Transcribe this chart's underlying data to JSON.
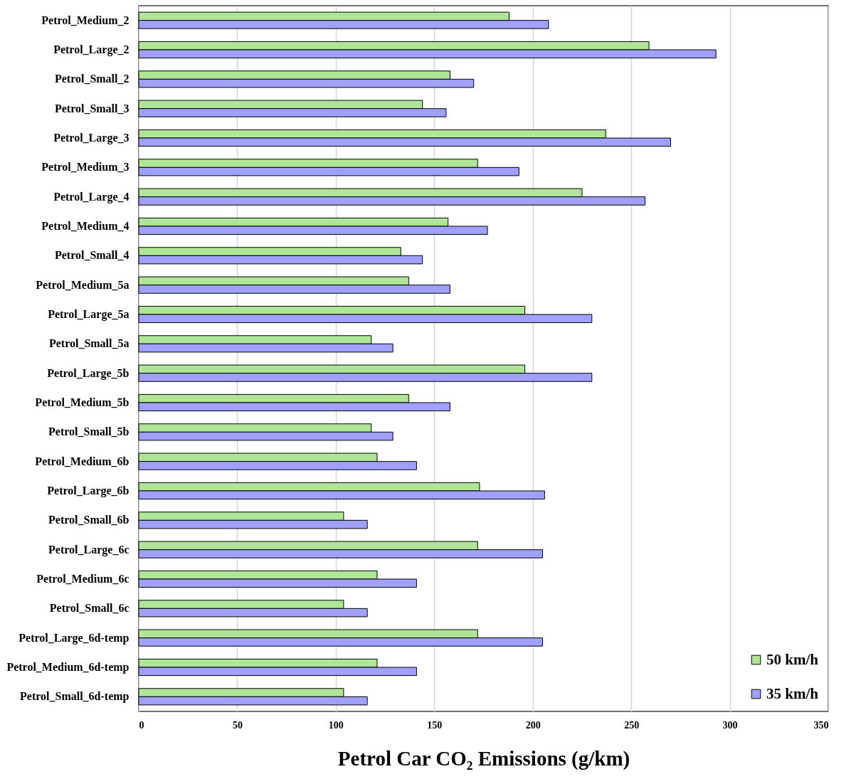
{
  "chart_data": {
    "type": "bar",
    "orientation": "horizontal",
    "xlabel": "Petrol Car CO₂ Emissions (g/km)",
    "categories": [
      "Petrol_Medium_2",
      "Petrol_Large_2",
      "Petrol_Small_2",
      "Petrol_Small_3",
      "Petrol_Large_3",
      "Petrol_Medium_3",
      "Petrol_Large_4",
      "Petrol_Medium_4",
      "Petrol_Small_4",
      "Petrol_Medium_5a",
      "Petrol_Large_5a",
      "Petrol_Small_5a",
      "Petrol_Large_5b",
      "Petrol_Medium_5b",
      "Petrol_Small_5b",
      "Petrol_Medium_6b",
      "Petrol_Large_6b",
      "Petrol_Small_6b",
      "Petrol_Large_6c",
      "Petrol_Medium_6c",
      "Petrol_Small_6c",
      "Petrol_Large_6d-temp",
      "Petrol_Medium_6d-temp",
      "Petrol_Small_6d-temp"
    ],
    "series": [
      {
        "name": "50 km/h",
        "color": "#aee596",
        "values": [
          188,
          259,
          158,
          144,
          237,
          172,
          225,
          157,
          133,
          137,
          196,
          118,
          196,
          137,
          118,
          121,
          173,
          104,
          172,
          121,
          104,
          172,
          121,
          104
        ]
      },
      {
        "name": "35 km/h",
        "color": "#a0a0ff",
        "values": [
          208,
          293,
          170,
          156,
          270,
          193,
          257,
          177,
          144,
          158,
          230,
          129,
          230,
          158,
          129,
          141,
          206,
          116,
          205,
          141,
          116,
          205,
          141,
          116
        ]
      }
    ],
    "xlim": [
      0,
      350
    ],
    "xticks": [
      0,
      50,
      100,
      150,
      200,
      250,
      300,
      350
    ],
    "grid": "x",
    "legend": "bottom right"
  }
}
